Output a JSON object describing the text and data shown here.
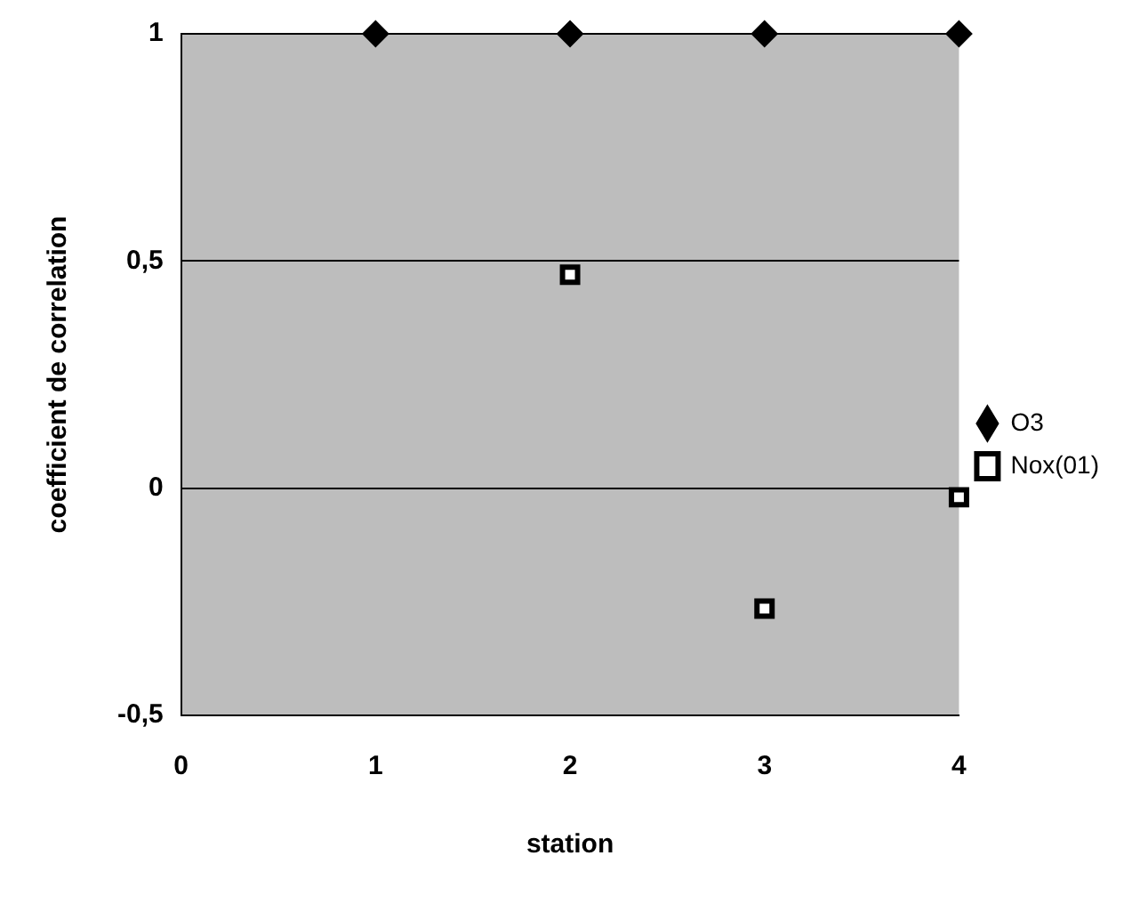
{
  "chart_data": {
    "type": "scatter",
    "xlabel": "station",
    "ylabel": "coefficient de correlation",
    "xlim": [
      0,
      4
    ],
    "xticks": [
      0,
      1,
      2,
      3,
      4
    ],
    "ylim": [
      -0.5,
      1
    ],
    "yticks": [
      {
        "value": -0.5,
        "label": "-0,5"
      },
      {
        "value": 0,
        "label": "0"
      },
      {
        "value": 0.5,
        "label": "0,5"
      },
      {
        "value": 1,
        "label": "1"
      }
    ],
    "grid": "y",
    "legend": "right",
    "series": [
      {
        "name": "O3",
        "color": "#000000",
        "marker": "diamond",
        "x": [
          1,
          2,
          3,
          4
        ],
        "values": [
          1,
          1,
          1,
          1
        ]
      },
      {
        "name": "Nox(01)",
        "color": "#000000",
        "marker": "square",
        "x": [
          2,
          3,
          4
        ],
        "values": [
          0.47,
          -0.265,
          -0.02
        ]
      }
    ]
  }
}
